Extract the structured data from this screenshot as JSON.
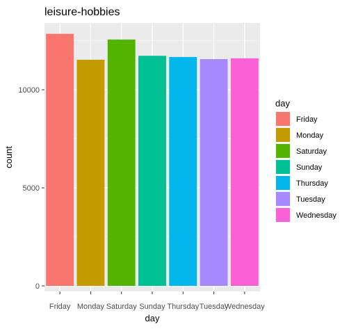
{
  "chart_data": {
    "type": "bar",
    "title": "leisure-hobbies",
    "xlabel": "day",
    "ylabel": "count",
    "categories": [
      "Friday",
      "Monday",
      "Saturday",
      "Sunday",
      "Thursday",
      "Tuesday",
      "Wednesday"
    ],
    "values": [
      12850,
      11530,
      12560,
      11730,
      11670,
      11560,
      11600
    ],
    "colors": [
      "#F8766D",
      "#C49A00",
      "#53B400",
      "#00C094",
      "#00B6EB",
      "#A58AFF",
      "#FB61D7"
    ],
    "yticks": [
      0,
      5000,
      10000
    ],
    "ytick_labels": [
      "0",
      "5000",
      "10000"
    ],
    "ylim": [
      0,
      13500
    ],
    "grid": true,
    "panel_background": "#EBEBEB",
    "legend": {
      "title": "day",
      "placement": "right",
      "entries": [
        "Friday",
        "Monday",
        "Saturday",
        "Sunday",
        "Thursday",
        "Tuesday",
        "Wednesday"
      ]
    }
  }
}
